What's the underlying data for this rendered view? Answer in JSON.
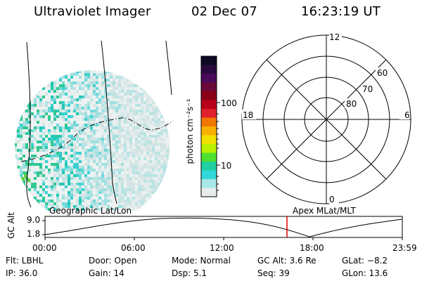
{
  "header": {
    "instrument": "Ultraviolet Imager",
    "date": "02 Dec 07",
    "time": "16:23:19 UT"
  },
  "colorbar": {
    "unit_label": "photon cm⁻²s⁻¹",
    "tick_labels": [
      "100",
      "10"
    ],
    "colors": [
      "#0d0a24",
      "#2a0a3e",
      "#4a0a5a",
      "#6a0838",
      "#8a0014",
      "#b8001a",
      "#e0202a",
      "#f07800",
      "#f8b000",
      "#f0e000",
      "#b8f000",
      "#50e030",
      "#20d0a0",
      "#30d8d8",
      "#a8e8e8",
      "#e8ecec"
    ]
  },
  "polar_plot": {
    "lat_labels": [
      "60",
      "70",
      "80"
    ],
    "mlt_labels": [
      "12",
      "18",
      "6",
      "0"
    ]
  },
  "timeline": {
    "left_title": "Geographic Lat/Lon",
    "right_title": "Apex  MLat/MLT",
    "axis_label": "GC Alt",
    "y_ticks": [
      "9.0",
      "1.8"
    ],
    "x_ticks": [
      "00:00",
      "06:00",
      "12:00",
      "18:00",
      "23:59"
    ],
    "current_marker_color": "#e00000"
  },
  "status": {
    "row1": {
      "flt": "Flt: LBHL",
      "door": "Door: Open",
      "mode": "Mode: Normal",
      "gcalt": "GC Alt: 3.6 Re",
      "glat": "GLat:  −8.2"
    },
    "row2": {
      "ip": "IP: 36.0",
      "gain": "Gain: 14",
      "dsp": "Dsp:    5.1",
      "seq": "Seq: 39",
      "glon": "GLon:  13.6"
    }
  }
}
